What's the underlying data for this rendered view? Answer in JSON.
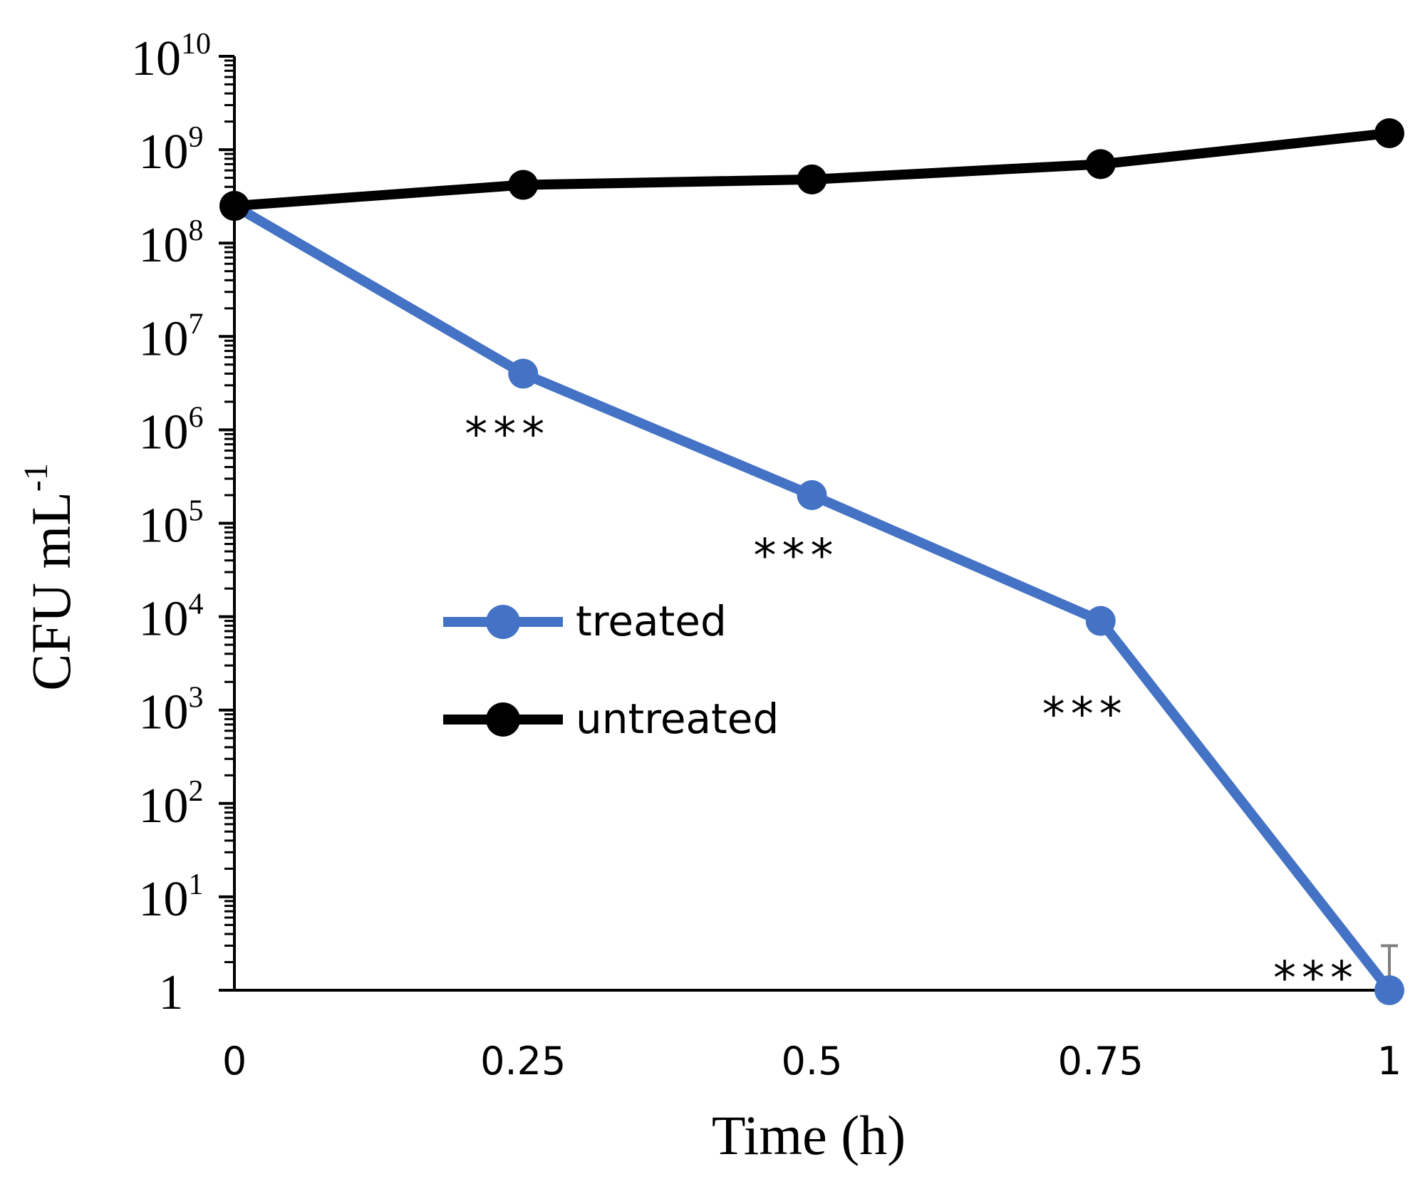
{
  "chart_data": {
    "type": "line",
    "xlabel": "Time (h)",
    "ylabel": "CFU mL",
    "ylabel_superscript": "-1",
    "x": [
      0,
      0.25,
      0.5,
      0.75,
      1
    ],
    "x_tick_labels": [
      "0",
      "0.25",
      "0.5",
      "0.75",
      "1"
    ],
    "xlim": [
      0,
      1
    ],
    "y_scale": "log",
    "ylim": [
      1,
      10000000000
    ],
    "y_ticks": [
      {
        "value": 1,
        "mantissa": "1",
        "exponent": ""
      },
      {
        "value": 10,
        "mantissa": "10",
        "exponent": "1"
      },
      {
        "value": 100,
        "mantissa": "10",
        "exponent": "2"
      },
      {
        "value": 1000,
        "mantissa": "10",
        "exponent": "3"
      },
      {
        "value": 10000,
        "mantissa": "10",
        "exponent": "4"
      },
      {
        "value": 100000,
        "mantissa": "10",
        "exponent": "5"
      },
      {
        "value": 1000000,
        "mantissa": "10",
        "exponent": "6"
      },
      {
        "value": 10000000,
        "mantissa": "10",
        "exponent": "7"
      },
      {
        "value": 100000000,
        "mantissa": "10",
        "exponent": "8"
      },
      {
        "value": 1000000000,
        "mantissa": "10",
        "exponent": "9"
      },
      {
        "value": 10000000000,
        "mantissa": "10",
        "exponent": "10"
      }
    ],
    "grid": false,
    "legend_position": "center-left",
    "series": [
      {
        "name": "treated",
        "color": "#4472C4",
        "values": [
          250000000,
          4000000,
          200000,
          9000,
          1
        ]
      },
      {
        "name": "untreated",
        "color": "#000000",
        "values": [
          250000000,
          420000000,
          480000000,
          700000000,
          1500000000
        ]
      }
    ],
    "annotations": [
      {
        "text": "***",
        "x": 0.25,
        "y": 1000000
      },
      {
        "text": "***",
        "x": 0.5,
        "y": 50000
      },
      {
        "text": "***",
        "x": 0.75,
        "y": 1000
      },
      {
        "text": "***",
        "x": 0.95,
        "y": 1.5
      }
    ],
    "error_bar": {
      "series": "treated",
      "x": 1,
      "y_upper": 3
    }
  }
}
